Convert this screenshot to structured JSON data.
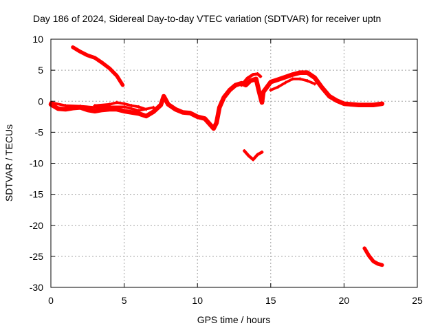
{
  "chart_data": {
    "type": "scatter",
    "title": "Day 186 of 2024, Sidereal Day-to-day VTEC variation (SDTVAR) for receiver uptn",
    "xlabel": "GPS time / hours",
    "ylabel": "SDTVAR / TECUs",
    "xlim": [
      0,
      25
    ],
    "ylim": [
      -30,
      10
    ],
    "x_ticks": [
      0,
      5,
      10,
      15,
      20,
      25
    ],
    "y_ticks": [
      10,
      5,
      0,
      -5,
      -10,
      -15,
      -20,
      -25,
      -30
    ],
    "grid": true,
    "series_color": "#ff0000",
    "series": [
      {
        "name": "trace-main",
        "width": 1.2,
        "points": [
          [
            0.0,
            -0.5
          ],
          [
            0.5,
            -1.2
          ],
          [
            1.0,
            -1.3
          ],
          [
            1.5,
            -1.1
          ],
          [
            2.0,
            -1.0
          ],
          [
            2.5,
            -1.4
          ],
          [
            3.0,
            -1.6
          ],
          [
            3.5,
            -1.4
          ],
          [
            4.0,
            -1.3
          ],
          [
            4.5,
            -1.3
          ],
          [
            5.0,
            -1.6
          ],
          [
            5.5,
            -1.8
          ],
          [
            6.0,
            -2.0
          ],
          [
            6.5,
            -2.4
          ],
          [
            7.0,
            -1.7
          ],
          [
            7.5,
            -0.6
          ],
          [
            7.7,
            0.8
          ],
          [
            8.0,
            -0.5
          ],
          [
            8.5,
            -1.3
          ],
          [
            9.0,
            -1.8
          ],
          [
            9.5,
            -1.9
          ],
          [
            10.0,
            -2.5
          ],
          [
            10.5,
            -2.8
          ],
          [
            10.8,
            -3.6
          ],
          [
            11.1,
            -4.4
          ],
          [
            11.3,
            -3.5
          ],
          [
            11.5,
            -1.0
          ],
          [
            11.8,
            0.6
          ],
          [
            12.2,
            1.8
          ],
          [
            12.6,
            2.6
          ],
          [
            13.0,
            2.9
          ],
          [
            13.3,
            2.6
          ],
          [
            13.6,
            3.3
          ],
          [
            14.0,
            3.6
          ],
          [
            14.2,
            1.6
          ],
          [
            14.4,
            -0.2
          ],
          [
            14.5,
            1.5
          ],
          [
            15.0,
            3.1
          ],
          [
            15.5,
            3.5
          ],
          [
            16.0,
            3.9
          ],
          [
            16.5,
            4.3
          ],
          [
            17.0,
            4.6
          ],
          [
            17.5,
            4.6
          ],
          [
            18.0,
            3.8
          ],
          [
            18.5,
            2.2
          ],
          [
            19.0,
            0.8
          ],
          [
            19.5,
            0.1
          ],
          [
            20.0,
            -0.4
          ],
          [
            20.5,
            -0.5
          ],
          [
            21.0,
            -0.6
          ],
          [
            21.5,
            -0.6
          ],
          [
            22.0,
            -0.6
          ],
          [
            22.6,
            -0.4
          ]
        ]
      },
      {
        "name": "trace-upper",
        "width": 0.7,
        "points": [
          [
            3.0,
            -0.7
          ],
          [
            4.0,
            -0.5
          ],
          [
            4.5,
            -0.2
          ],
          [
            5.0,
            -0.4
          ],
          [
            5.5,
            -0.7
          ],
          [
            6.0,
            -0.9
          ],
          [
            6.5,
            -1.3
          ]
        ]
      },
      {
        "name": "trace-lower",
        "width": 0.7,
        "points": [
          [
            0.0,
            -0.2
          ],
          [
            1.0,
            -0.7
          ],
          [
            2.0,
            -0.8
          ],
          [
            3.0,
            -1.0
          ],
          [
            4.0,
            -0.9
          ],
          [
            5.0,
            -0.9
          ],
          [
            6.0,
            -1.5
          ],
          [
            7.0,
            -1.0
          ]
        ]
      },
      {
        "name": "trace-bump",
        "width": 0.8,
        "points": [
          [
            13.0,
            2.6
          ],
          [
            13.4,
            3.7
          ],
          [
            13.8,
            4.3
          ],
          [
            14.1,
            4.4
          ],
          [
            14.3,
            4.0
          ]
        ]
      },
      {
        "name": "trace-hump",
        "width": 0.7,
        "points": [
          [
            15.0,
            1.8
          ],
          [
            15.5,
            2.3
          ],
          [
            16.0,
            3.0
          ],
          [
            16.5,
            3.6
          ],
          [
            17.0,
            3.6
          ],
          [
            17.5,
            3.3
          ],
          [
            18.0,
            2.8
          ]
        ]
      },
      {
        "name": "trace-decline",
        "width": 1.0,
        "points": [
          [
            1.5,
            8.7
          ],
          [
            2.0,
            8.0
          ],
          [
            2.5,
            7.4
          ],
          [
            3.0,
            7.0
          ],
          [
            3.5,
            6.2
          ],
          [
            4.0,
            5.3
          ],
          [
            4.5,
            4.1
          ],
          [
            4.9,
            2.6
          ]
        ]
      },
      {
        "name": "trace-v",
        "width": 0.8,
        "points": [
          [
            13.2,
            -8.0
          ],
          [
            13.5,
            -8.8
          ],
          [
            13.8,
            -9.4
          ],
          [
            14.1,
            -8.6
          ],
          [
            14.4,
            -8.2
          ]
        ]
      },
      {
        "name": "trace-tail",
        "width": 1.0,
        "points": [
          [
            21.4,
            -23.7
          ],
          [
            21.7,
            -24.9
          ],
          [
            22.0,
            -25.8
          ],
          [
            22.3,
            -26.2
          ],
          [
            22.6,
            -26.4
          ]
        ]
      }
    ]
  }
}
